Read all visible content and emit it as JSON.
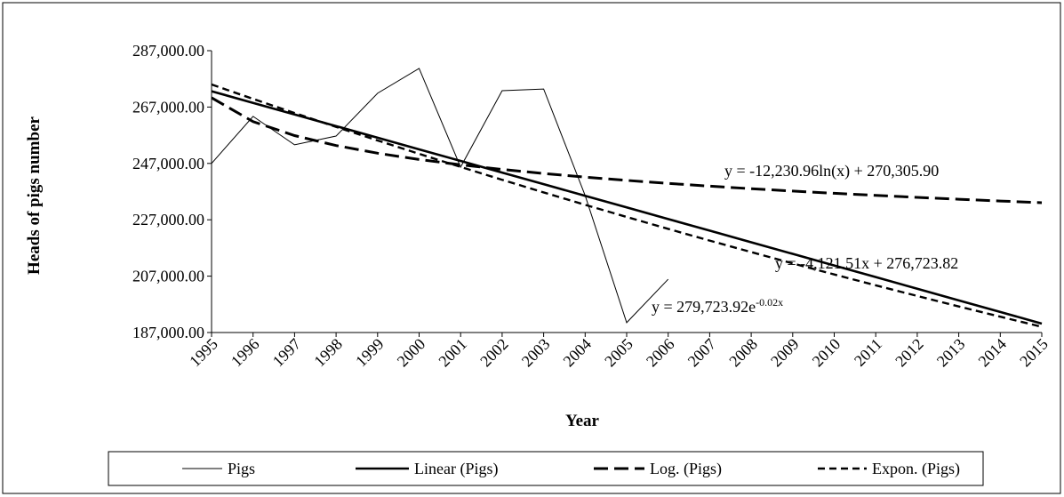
{
  "chart_data": {
    "type": "line",
    "y_label": "Heads of pigs number",
    "x_label": "Year",
    "categories": [
      "1995",
      "1996",
      "1997",
      "1998",
      "1999",
      "2000",
      "2001",
      "2002",
      "2003",
      "2004",
      "2005",
      "2006",
      "2007",
      "2008",
      "2009",
      "2010",
      "2011",
      "2012",
      "2013",
      "2014",
      "2015"
    ],
    "series": [
      {
        "name": "Pigs",
        "color": "#000000",
        "style": "thin",
        "values": [
          247000,
          263700,
          253600,
          256700,
          271900,
          280700,
          245700,
          272800,
          273400,
          235600,
          190500,
          205900,
          null,
          null,
          null,
          null,
          null,
          null,
          null,
          null,
          null
        ]
      },
      {
        "name": "Linear (Pigs)",
        "color": "#000000",
        "style": "thick",
        "values": [
          272602,
          268481,
          264359,
          260238,
          256116,
          251995,
          247873,
          243752,
          239630,
          235509,
          231387,
          227266,
          223144,
          219023,
          214901,
          210780,
          206658,
          202537,
          198415,
          194293,
          190172
        ]
      },
      {
        "name": "Log. (Pigs)",
        "color": "#000000",
        "style": "long-dash",
        "values": [
          270306,
          261828,
          256869,
          253350,
          250621,
          248390,
          246506,
          244873,
          243432,
          242143,
          240977,
          239913,
          238934,
          238027,
          237183,
          236394,
          235653,
          234953,
          234293,
          233665,
          233069
        ]
      },
      {
        "name": "Expon. (Pigs)",
        "color": "#000000",
        "style": "dash",
        "values": [
          275000,
          269890,
          264880,
          259960,
          255140,
          250400,
          245750,
          241190,
          236710,
          232310,
          228000,
          223770,
          219610,
          215540,
          211530,
          207600,
          203750,
          199970,
          196250,
          192610,
          189030
        ]
      }
    ],
    "annotations": {
      "log": "y = -12,230.96ln(x) + 270,305.90",
      "linear": "y = -4,121.51x + 276,723.82",
      "expon": {
        "text": "y = 279,723.92e",
        "exponent": "-0.02x"
      }
    },
    "ylim": [
      187000,
      287000
    ],
    "yticks": [
      {
        "value": 187000,
        "label": "187,000.00"
      },
      {
        "value": 207000,
        "label": "207,000.00"
      },
      {
        "value": 227000,
        "label": "227,000.00"
      },
      {
        "value": 247000,
        "label": "247,000.00"
      },
      {
        "value": 267000,
        "label": "267,000.00"
      },
      {
        "value": 287000,
        "label": "287,000.00"
      }
    ],
    "legend": "bottom"
  }
}
